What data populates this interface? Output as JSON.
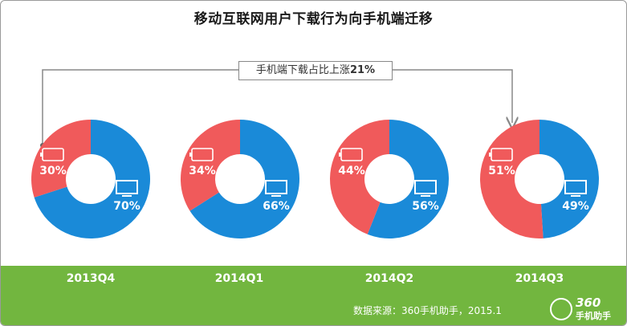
{
  "title": "移动互联网用户下载行为向手机端迁移",
  "annotation": {
    "text": "手机端下载占比上涨",
    "value": "21%"
  },
  "colors": {
    "mobile": "#f05a5b",
    "pc": "#1a8ad8",
    "band": "#72b63f",
    "arrow": "#888888"
  },
  "legend_icons": {
    "mobile": "phone-icon",
    "pc": "monitor-icon"
  },
  "chart_data": {
    "type": "pie",
    "variant": "donut",
    "title": "移动互联网用户下载行为向手机端迁移",
    "categories": [
      "2013Q4",
      "2014Q1",
      "2014Q2",
      "2014Q3"
    ],
    "series": [
      {
        "icon": "phone-icon",
        "values": [
          30,
          34,
          44,
          51
        ],
        "labels": [
          "30%",
          "34%",
          "44%",
          "51%"
        ]
      },
      {
        "icon": "monitor-icon",
        "values": [
          70,
          66,
          56,
          49
        ],
        "labels": [
          "70%",
          "66%",
          "56%",
          "49%"
        ]
      }
    ]
  },
  "footer": {
    "source": "数据来源：360手机助手，2015.1",
    "logo_number": "360",
    "logo_text": "手机助手"
  }
}
